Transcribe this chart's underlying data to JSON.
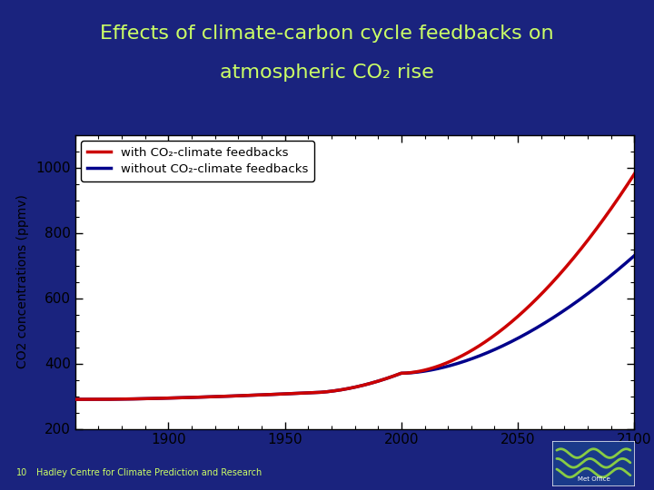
{
  "title_line1": "Effects of climate-carbon cycle feedbacks on",
  "title_line2": "atmospheric CO₂ rise",
  "ylabel": "CO2 concentrations (ppmv)",
  "background_outer": "#1a237e",
  "background_inner": "#ffffff",
  "title_color": "#ccff66",
  "title_fontsize": 16,
  "tick_color": "#000000",
  "xlim": [
    1860,
    2100
  ],
  "ylim": [
    200,
    1100
  ],
  "xticks": [
    1900,
    1950,
    2000,
    2050,
    2100
  ],
  "yticks": [
    200,
    400,
    600,
    800,
    1000
  ],
  "legend_label_with": "with CO₂-climate feedbacks",
  "legend_label_without": "without CO₂-climate feedbacks",
  "line_color_with": "#cc0000",
  "line_color_without": "#00008b",
  "line_width": 2.5,
  "footer_text": "Hadley Centre for Climate Prediction and Research",
  "footer_color": "#ccff66",
  "slide_number": "10",
  "logo_bg": "#1a3a8a",
  "logo_wave_color": "#88cc44"
}
